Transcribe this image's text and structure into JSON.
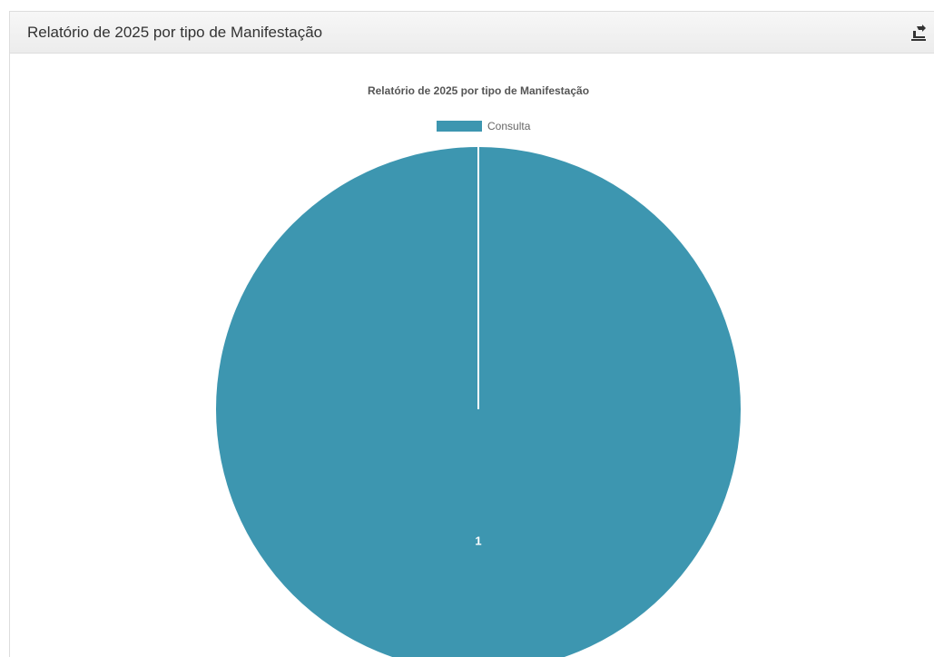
{
  "panel": {
    "title": "Relatório de 2025 por tipo de Manifestação"
  },
  "toolbar": {
    "export_icon": "export-icon"
  },
  "chart_data": {
    "type": "pie",
    "title": "Relatório de 2025 por tipo de Manifestação",
    "legend_position": "top",
    "slices": [
      {
        "label": "Consulta",
        "value": 1,
        "color": "#3d96b0"
      }
    ]
  }
}
